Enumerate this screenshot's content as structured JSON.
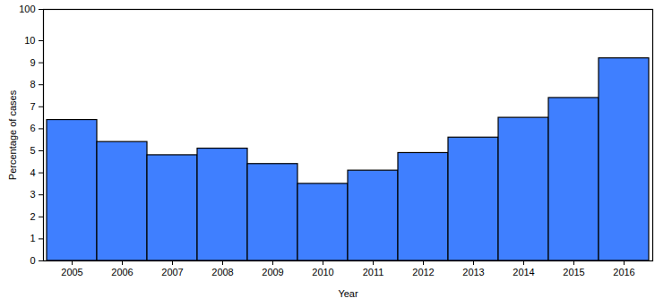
{
  "chart_data": {
    "type": "bar",
    "categories": [
      "2005",
      "2006",
      "2007",
      "2008",
      "2009",
      "2010",
      "2011",
      "2012",
      "2013",
      "2014",
      "2015",
      "2016"
    ],
    "values": [
      6.4,
      5.4,
      4.8,
      5.1,
      4.4,
      3.5,
      4.1,
      4.9,
      5.6,
      6.5,
      7.4,
      9.2
    ],
    "color": "#3f7fff",
    "xlabel": "Year",
    "ylabel": "Percentage of cases",
    "ylim": [
      0,
      100
    ],
    "yticks": [
      0,
      1,
      2,
      3,
      4,
      5,
      6,
      7,
      8,
      9,
      10,
      100
    ],
    "grid": false
  }
}
